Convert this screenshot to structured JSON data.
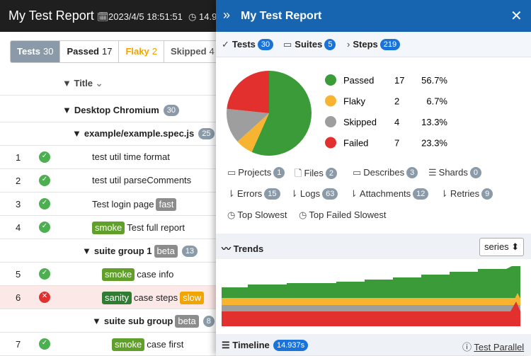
{
  "report": {
    "title": "My Test Report",
    "date": "2023/4/5 18:51:51",
    "duration": "14.9"
  },
  "filters": [
    {
      "label": "Tests",
      "count": 30
    },
    {
      "label": "Passed",
      "count": 17
    },
    {
      "label": "Flaky",
      "count": 2
    },
    {
      "label": "Skipped",
      "count": 4
    }
  ],
  "column_title": "Title",
  "rows": [
    {
      "level": 0,
      "parts": [
        {
          "text": "Desktop Chromium"
        }
      ],
      "count": 30
    },
    {
      "level": 1,
      "parts": [
        {
          "text": "example/example.spec.js"
        }
      ],
      "count": 25
    },
    {
      "num": "1",
      "status": "passed",
      "level": 2,
      "parts": [
        {
          "text": "test util time format"
        }
      ]
    },
    {
      "num": "2",
      "status": "passed",
      "level": 2,
      "parts": [
        {
          "text": "test util parseComments"
        }
      ]
    },
    {
      "num": "3",
      "status": "passed",
      "level": 2,
      "parts": [
        {
          "text": "Test login page"
        },
        {
          "text": "fast",
          "color": "#8c8c8c"
        }
      ]
    },
    {
      "num": "4",
      "status": "passed",
      "level": 2,
      "parts": [
        {
          "text": "smoke",
          "color": "#5f9f2a"
        },
        {
          "text": "Test full report"
        }
      ]
    },
    {
      "level": 2,
      "parts": [
        {
          "text": "suite group 1"
        },
        {
          "text": "beta",
          "color": "#8c8c8c"
        }
      ],
      "count": 13
    },
    {
      "num": "5",
      "status": "passed",
      "level": 3,
      "parts": [
        {
          "text": "smoke",
          "color": "#5f9f2a"
        },
        {
          "text": "case info"
        }
      ]
    },
    {
      "num": "6",
      "status": "failed",
      "level": 3,
      "parts": [
        {
          "text": "sanity",
          "color": "#2e7d32"
        },
        {
          "text": "case steps"
        },
        {
          "text": "slow",
          "color": "#f0a500"
        }
      ]
    },
    {
      "level": 3,
      "parts": [
        {
          "text": "suite sub group"
        },
        {
          "text": "beta",
          "color": "#8c8c8c"
        }
      ],
      "count": 8
    },
    {
      "num": "7",
      "status": "passed",
      "level": 4,
      "parts": [
        {
          "text": "smoke",
          "color": "#5f9f2a"
        },
        {
          "text": "case first"
        }
      ]
    }
  ],
  "panel": {
    "title": "My Test Report",
    "tabs": [
      {
        "label": "Tests",
        "count": 30
      },
      {
        "label": "Suites",
        "count": 5
      },
      {
        "label": "Steps",
        "count": 219
      }
    ],
    "summary": {
      "type": "pie",
      "categories": [
        "Passed",
        "Flaky",
        "Skipped",
        "Failed"
      ],
      "values": [
        17,
        2,
        4,
        7
      ],
      "percent_labels": [
        "56.7%",
        "6.7%",
        "13.3%",
        "23.3%"
      ],
      "colors": [
        "#3b9b38",
        "#f8b431",
        "#9e9e9e",
        "#e2302f"
      ]
    },
    "links": [
      {
        "label": "Projects",
        "count": 1
      },
      {
        "label": "Files",
        "count": 2
      },
      {
        "label": "Describes",
        "count": 3
      },
      {
        "label": "Shards",
        "count": 0
      },
      {
        "label": "Errors",
        "count": 15
      },
      {
        "label": "Logs",
        "count": 63
      },
      {
        "label": "Attachments",
        "count": 12
      },
      {
        "label": "Retries",
        "count": 9
      },
      {
        "label": "Top Slowest"
      },
      {
        "label": "Top Failed Slowest"
      }
    ],
    "trends": "Trends",
    "series_select": "series",
    "timeline": "Timeline",
    "timeline_duration": "14.937s",
    "parallel_link": "Test Parallel"
  }
}
